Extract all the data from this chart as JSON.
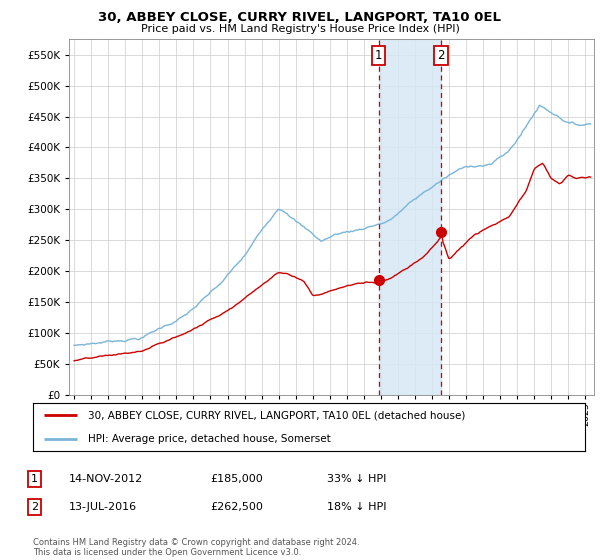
{
  "title": "30, ABBEY CLOSE, CURRY RIVEL, LANGPORT, TA10 0EL",
  "subtitle": "Price paid vs. HM Land Registry's House Price Index (HPI)",
  "ylim": [
    0,
    575000
  ],
  "yticks": [
    0,
    50000,
    100000,
    150000,
    200000,
    250000,
    300000,
    350000,
    400000,
    450000,
    500000,
    550000
  ],
  "xlim_start": 1994.7,
  "xlim_end": 2025.5,
  "hpi_color": "#7ab5d8",
  "price_color": "#cc0000",
  "vline1_x": 2012.87,
  "vline2_x": 2016.53,
  "point1_x": 2012.87,
  "point1_y": 185000,
  "point2_x": 2016.53,
  "point2_y": 262500,
  "shade_color": "#d6e8f5",
  "legend_price_label": "30, ABBEY CLOSE, CURRY RIVEL, LANGPORT, TA10 0EL (detached house)",
  "legend_hpi_label": "HPI: Average price, detached house, Somerset",
  "table_row1": [
    "1",
    "14-NOV-2012",
    "£185,000",
    "33% ↓ HPI"
  ],
  "table_row2": [
    "2",
    "13-JUL-2016",
    "£262,500",
    "18% ↓ HPI"
  ],
  "footer": "Contains HM Land Registry data © Crown copyright and database right 2024.\nThis data is licensed under the Open Government Licence v3.0.",
  "background_color": "#ffffff",
  "grid_color": "#cccccc"
}
